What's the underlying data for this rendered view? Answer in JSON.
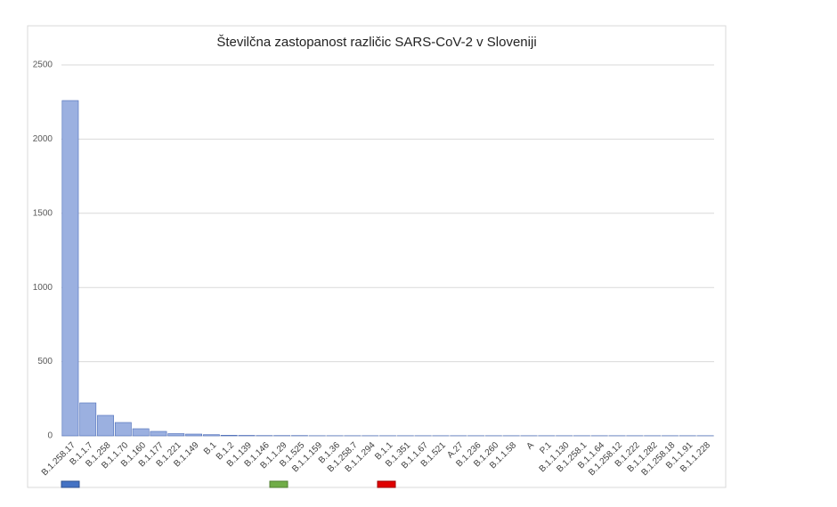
{
  "chart_data": {
    "type": "bar",
    "title": "Številčna  zastopanost  različic  SARS-CoV-2  v Sloveniji",
    "categories": [
      "B.1.258.17",
      "B.1.1.7",
      "B.1.258",
      "B.1.1.70",
      "B.1.160",
      "B.1.177",
      "B.1.221",
      "B.1.149",
      "B.1",
      "B.1.2",
      "B.1.139",
      "B.1.146",
      "B.1.1.29",
      "B.1.525",
      "B.1.1.159",
      "B.1.36",
      "B.1.258.7",
      "B.1.1.294",
      "B.1.1",
      "B.1.351",
      "B.1.1.67",
      "B.1.521",
      "A.27",
      "B.1.236",
      "B.1.260",
      "B.1.1.58",
      "A",
      "P.1",
      "B.1.1.130",
      "B.1.258.1",
      "B.1.1.64",
      "B.1.258.12",
      "B.1.222",
      "B.1.1.282",
      "B.1.258.18",
      "B.1.1.91",
      "B.1.1.228"
    ],
    "values": [
      2260,
      222,
      138,
      90,
      48,
      30,
      15,
      12,
      8,
      4,
      3,
      2,
      2,
      2,
      1,
      1,
      1,
      1,
      1,
      1,
      1,
      1,
      1,
      1,
      1,
      1,
      1,
      1,
      1,
      1,
      1,
      1,
      1,
      1,
      1,
      1,
      1
    ],
    "color": "#9bb0e0",
    "ylim": [
      0,
      2500
    ],
    "yticks": [
      0,
      500,
      1000,
      1500,
      2000,
      2500
    ],
    "grid": true
  }
}
